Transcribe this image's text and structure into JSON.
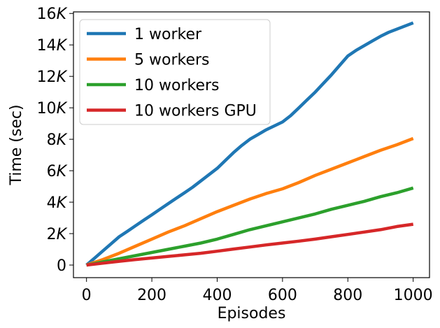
{
  "chart_data": {
    "type": "line",
    "title": "",
    "xlabel": "Episodes",
    "ylabel": "Time (sec)",
    "xlim": [
      -40,
      1050
    ],
    "ylim": [
      -800,
      16100
    ],
    "x_ticks": [
      0,
      200,
      400,
      600,
      800,
      1000
    ],
    "x_tick_labels": [
      "0",
      "200",
      "400",
      "600",
      "800",
      "1000"
    ],
    "y_ticks": [
      0,
      2000,
      4000,
      6000,
      8000,
      10000,
      12000,
      14000,
      16000
    ],
    "y_tick_labels": [
      {
        "base": "0",
        "suffix": ""
      },
      {
        "base": "2",
        "suffix": "K"
      },
      {
        "base": "4",
        "suffix": "K"
      },
      {
        "base": "6",
        "suffix": "K"
      },
      {
        "base": "8",
        "suffix": "K"
      },
      {
        "base": "10",
        "suffix": "K"
      },
      {
        "base": "12",
        "suffix": "K"
      },
      {
        "base": "14",
        "suffix": "K"
      },
      {
        "base": "16",
        "suffix": "K"
      }
    ],
    "grid": false,
    "legend_position": "top-left",
    "series": [
      {
        "name": "1 worker",
        "color": "#1f77b4",
        "x": [
          0,
          25,
          50,
          75,
          100,
          125,
          150,
          175,
          200,
          225,
          250,
          275,
          300,
          325,
          350,
          375,
          400,
          425,
          450,
          475,
          500,
          525,
          550,
          575,
          600,
          625,
          650,
          675,
          700,
          725,
          750,
          775,
          800,
          825,
          850,
          875,
          900,
          925,
          950,
          975,
          1000
        ],
        "y": [
          0,
          450,
          900,
          1350,
          1800,
          2150,
          2500,
          2850,
          3200,
          3550,
          3900,
          4250,
          4600,
          4950,
          5350,
          5750,
          6150,
          6650,
          7150,
          7600,
          8000,
          8300,
          8600,
          8850,
          9100,
          9500,
          10000,
          10500,
          11000,
          11550,
          12100,
          12700,
          13300,
          13650,
          13950,
          14250,
          14550,
          14800,
          15000,
          15200,
          15400
        ]
      },
      {
        "name": "5 workers",
        "color": "#ff7f0e",
        "x": [
          0,
          50,
          100,
          150,
          200,
          250,
          300,
          350,
          400,
          450,
          500,
          550,
          600,
          650,
          700,
          750,
          800,
          850,
          900,
          950,
          1000
        ],
        "y": [
          0,
          350,
          750,
          1200,
          1650,
          2100,
          2500,
          2950,
          3400,
          3800,
          4200,
          4550,
          4850,
          5250,
          5700,
          6100,
          6500,
          6900,
          7300,
          7650,
          8050
        ]
      },
      {
        "name": "10 workers",
        "color": "#2ca02c",
        "x": [
          0,
          50,
          100,
          150,
          200,
          250,
          300,
          350,
          400,
          450,
          500,
          550,
          600,
          650,
          700,
          750,
          800,
          850,
          900,
          950,
          1000
        ],
        "y": [
          0,
          200,
          400,
          600,
          800,
          1000,
          1200,
          1400,
          1650,
          1950,
          2250,
          2500,
          2750,
          3000,
          3250,
          3550,
          3800,
          4050,
          4350,
          4600,
          4900
        ]
      },
      {
        "name": "10 workers GPU",
        "color": "#d62728",
        "x": [
          0,
          50,
          100,
          150,
          200,
          250,
          300,
          350,
          400,
          450,
          500,
          550,
          600,
          650,
          700,
          750,
          800,
          850,
          900,
          950,
          1000
        ],
        "y": [
          0,
          120,
          240,
          350,
          450,
          550,
          650,
          750,
          880,
          1020,
          1150,
          1280,
          1400,
          1520,
          1650,
          1800,
          1950,
          2100,
          2250,
          2450,
          2600
        ]
      }
    ]
  }
}
